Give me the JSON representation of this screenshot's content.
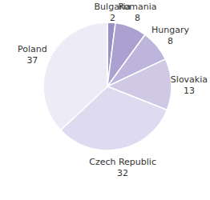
{
  "chart_data": {
    "type": "pie",
    "categories": [
      "Bulgaria",
      "Romania",
      "Hungary",
      "Slovakia",
      "Czech Republic",
      "Poland"
    ],
    "values": [
      2,
      8,
      8,
      13,
      32,
      37
    ],
    "colors": [
      "#9b90c6",
      "#aba1d0",
      "#bdb5db",
      "#cfc9e6",
      "#dedaef",
      "#edebf6"
    ],
    "data_labels": true
  }
}
